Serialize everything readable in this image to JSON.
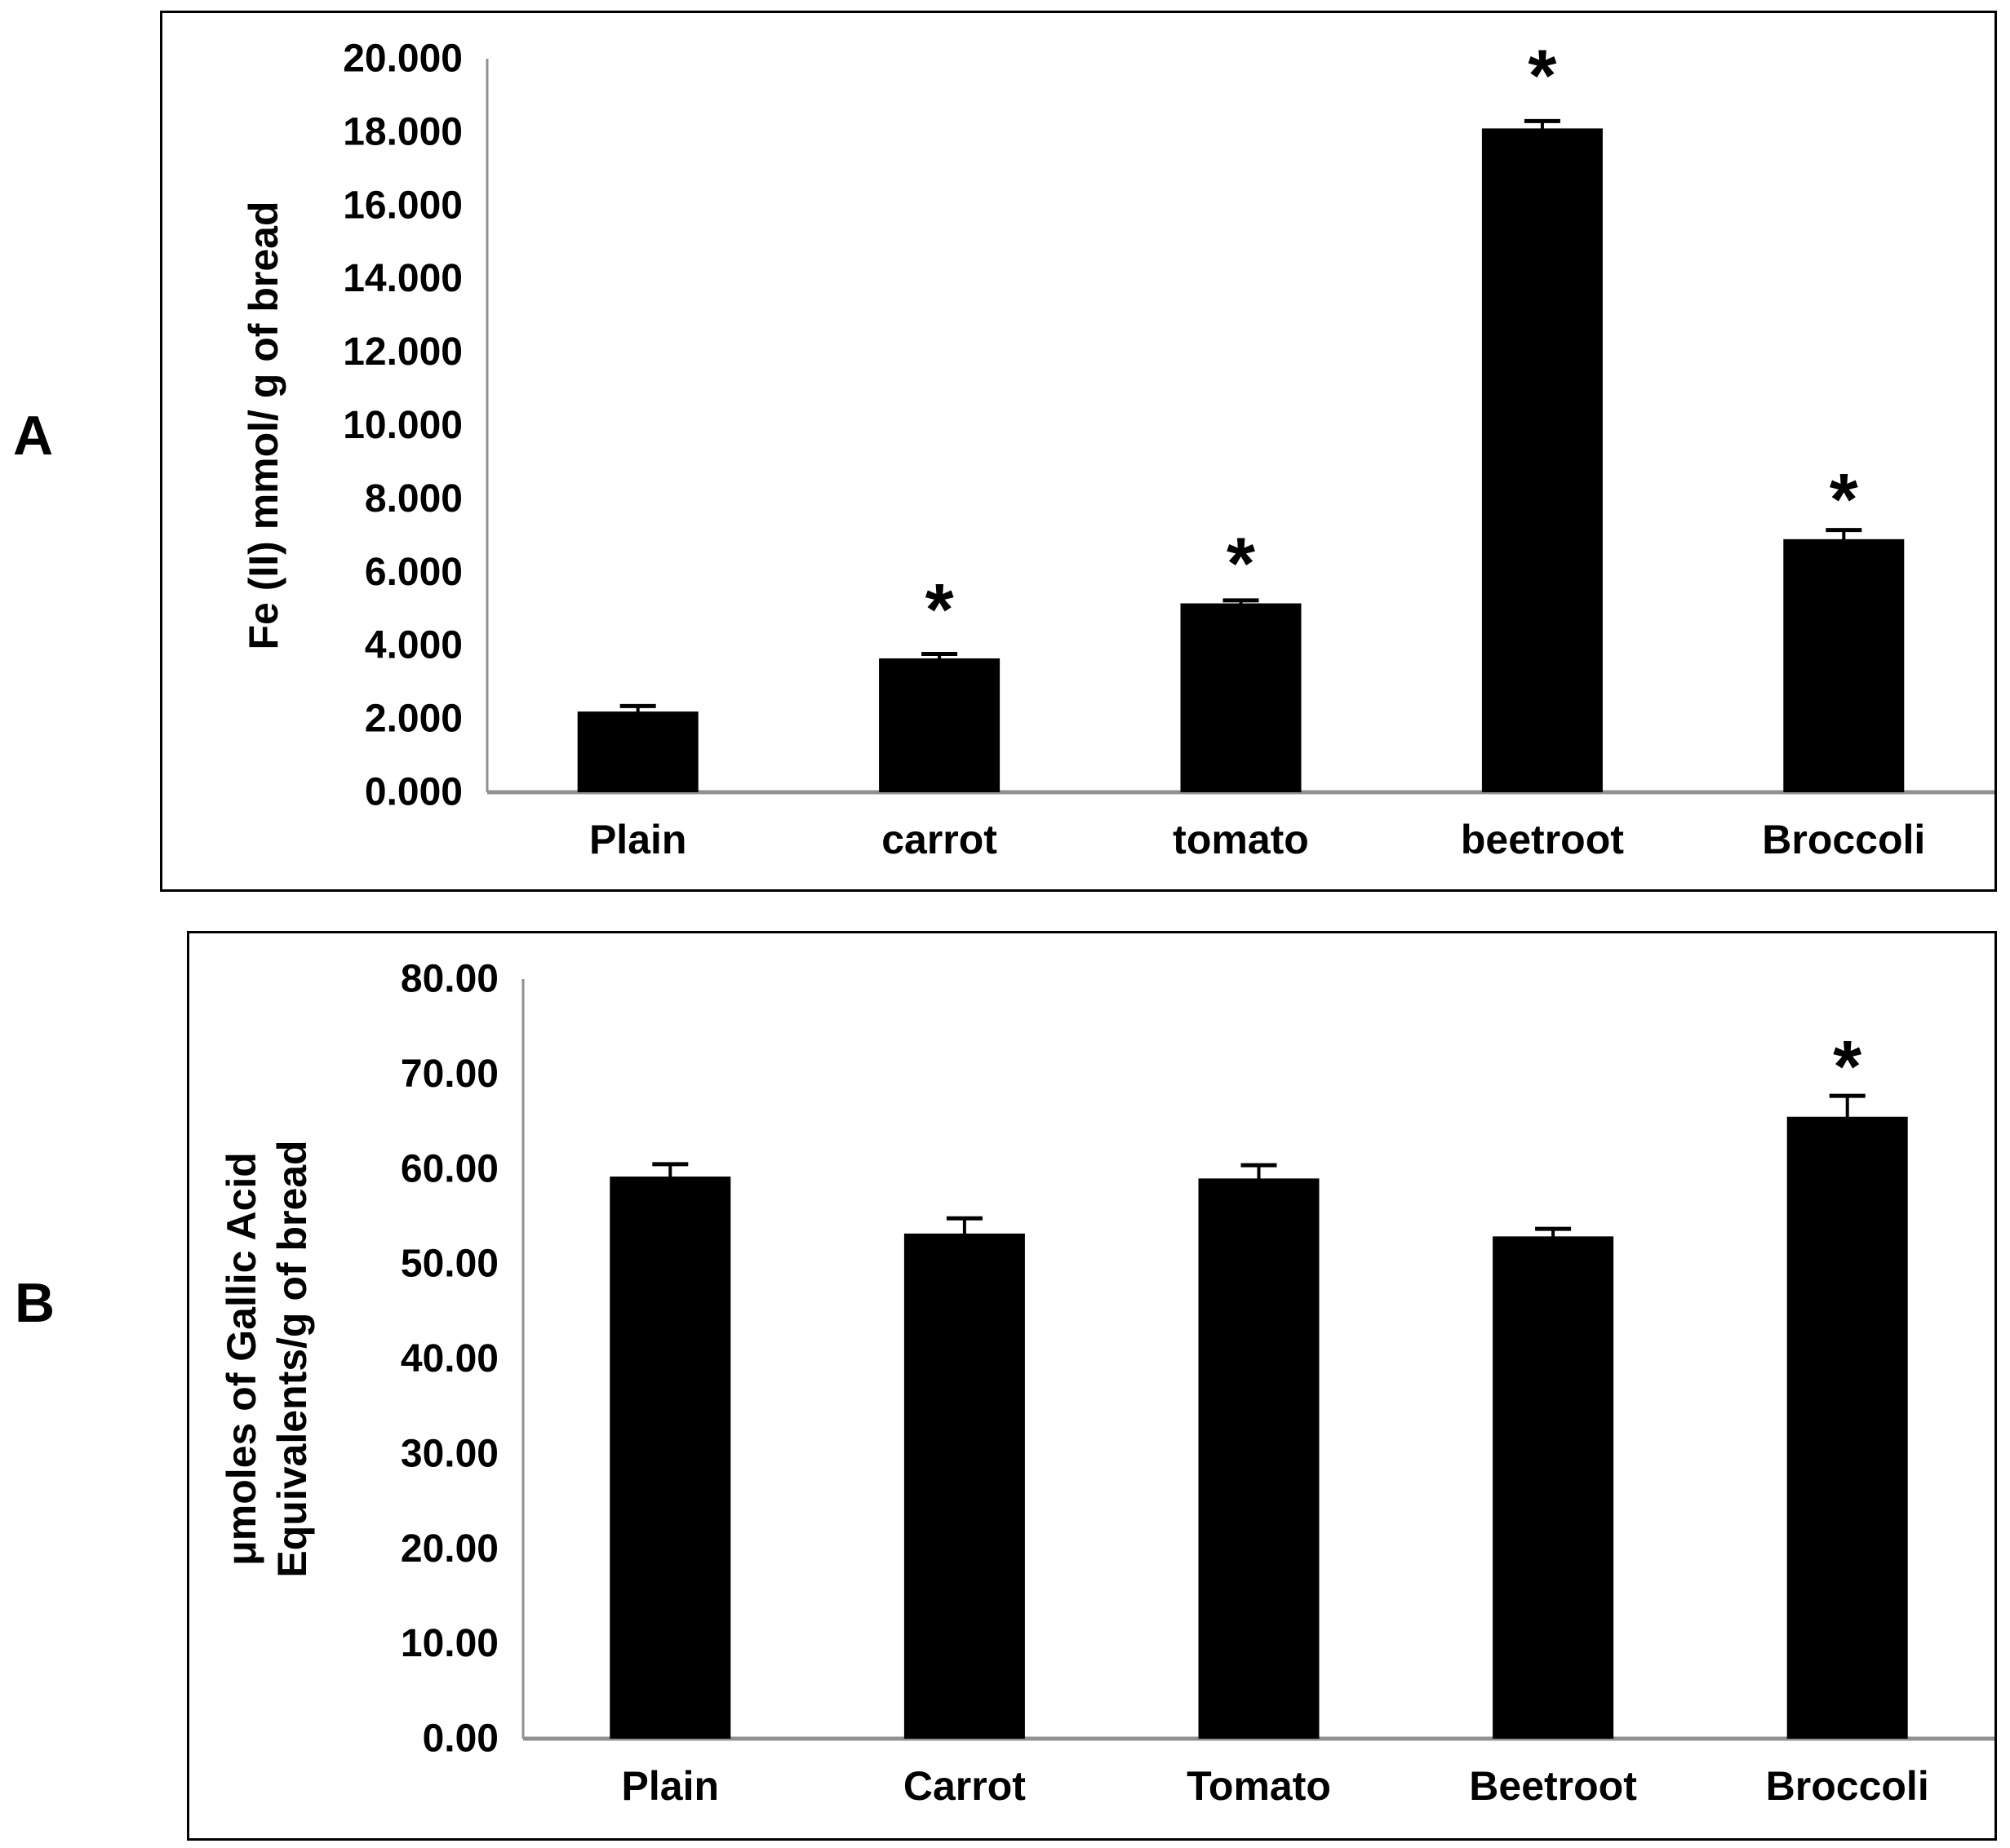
{
  "figure": {
    "panels": [
      {
        "letter": "A"
      },
      {
        "letter": "B"
      }
    ]
  },
  "chart_data": [
    {
      "type": "bar",
      "panel": "A",
      "title": "",
      "xlabel": "",
      "ylabel_lines": [
        "Fe (II) mmol/ g of bread"
      ],
      "categories": [
        "Plain",
        "carrot",
        "tomato",
        "beetroot",
        "Broccoli"
      ],
      "values": [
        2.2,
        3.65,
        5.15,
        18.1,
        6.9
      ],
      "errors": [
        0.15,
        0.12,
        0.08,
        0.2,
        0.25
      ],
      "significant": [
        false,
        true,
        true,
        true,
        true
      ],
      "asterisk_values": [
        null,
        5.3,
        6.55,
        19.85,
        8.3
      ],
      "significance_marker": "*",
      "ylim": [
        0,
        20
      ],
      "ytick_step": 2,
      "ytick_labels": [
        "0.000",
        "2.000",
        "4.000",
        "6.000",
        "8.000",
        "10.000",
        "12.000",
        "14.000",
        "16.000",
        "18.000",
        "20.000"
      ],
      "bar_color": "#000000",
      "axis_color": "#909090",
      "text_color": "#000000",
      "grid": "off",
      "legend": "none"
    },
    {
      "type": "bar",
      "panel": "B",
      "title": "",
      "xlabel": "",
      "ylabel_lines": [
        "μmoles of Gallic Acid",
        "Equivalents/g of bread"
      ],
      "categories": [
        "Plain",
        "Carrot",
        "Tomato",
        "Beetroot",
        "Broccoli"
      ],
      "values": [
        59.2,
        53.2,
        59.0,
        52.9,
        65.5
      ],
      "errors": [
        1.3,
        1.6,
        1.4,
        0.8,
        2.2
      ],
      "significant": [
        false,
        false,
        false,
        false,
        true
      ],
      "asterisk_values": [
        null,
        null,
        null,
        null,
        72
      ],
      "significance_marker": "*",
      "ylim": [
        0,
        80
      ],
      "ytick_step": 10,
      "ytick_labels": [
        "0.00",
        "10.00",
        "20.00",
        "30.00",
        "40.00",
        "50.00",
        "60.00",
        "70.00",
        "80.00"
      ],
      "bar_color": "#000000",
      "axis_color": "#909090",
      "text_color": "#000000",
      "grid": "off",
      "legend": "none"
    }
  ]
}
